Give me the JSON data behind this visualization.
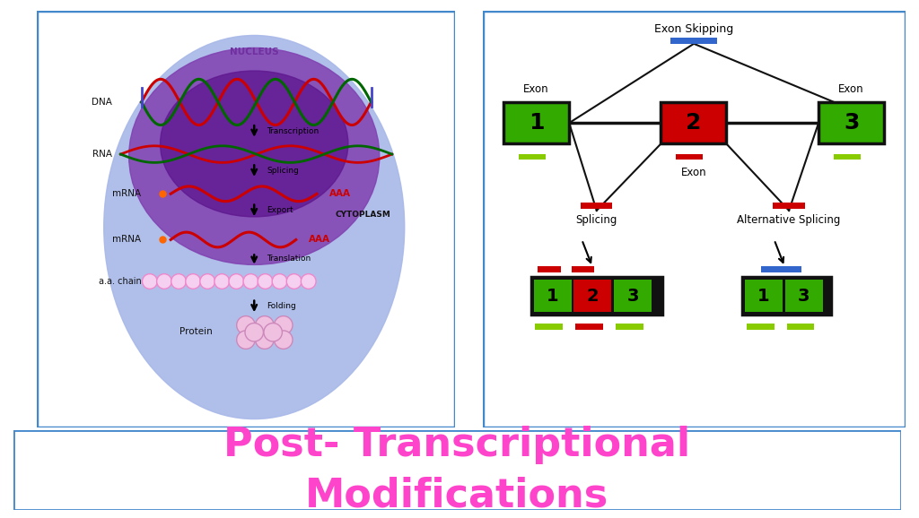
{
  "bg_color": "#ffffff",
  "title_text": "Post- Transcriptional\nModifications",
  "title_color": "#ff44cc",
  "title_fontsize": 32,
  "panel_border_color": "#4488cc",
  "panel_border_lw": 2.5,
  "cell": {
    "outer_color": "#a8b8e8",
    "nucleus_color": "#7030a0",
    "nucleus2_color": "#5a1890",
    "nucleus_label_color": "#7030a0",
    "label_color": "#222222",
    "dna_red": "#cc0000",
    "dna_green": "#006600",
    "rna_color": "#cc0000",
    "mrna_color": "#cc0000",
    "aaa_color": "#cc0000",
    "orange_dot": "#ff6600",
    "chain_color": "#ee99cc",
    "protein_color": "#ee99cc",
    "arrow_color": "#111111"
  },
  "right_panel": {
    "exon_skip_label": "Exon Skipping",
    "exon_label": "Exon",
    "splicing_label": "Splicing",
    "alt_splicing_label": "Alternative Splicing",
    "green_color": "#33aa00",
    "red_color": "#cc0000",
    "blue_color": "#3366cc",
    "black_color": "#111111",
    "lime_color": "#88cc00",
    "bg_color": "#ffffff"
  }
}
